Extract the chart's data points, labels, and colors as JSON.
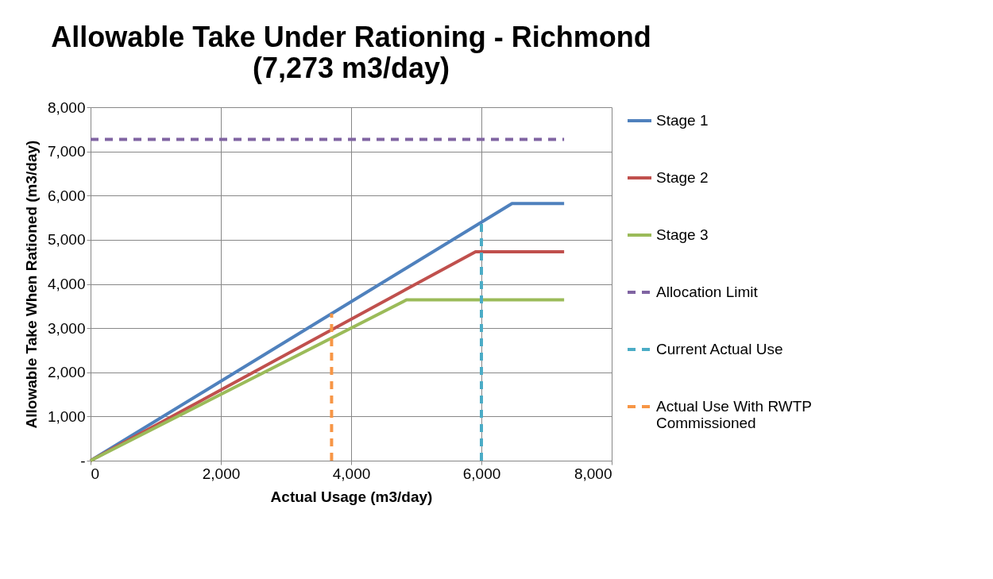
{
  "chart_data": {
    "type": "line",
    "title": "Allowable Take Under Rationing - Richmond",
    "subtitle": "(7,273 m3/day)",
    "xlabel": "Actual Usage (m3/day)",
    "ylabel": "Allowable Take When Rationed (m3/day)",
    "xlim": [
      0,
      8000
    ],
    "xticks": [
      0,
      {
        "value": 2000,
        "label": "2,000"
      },
      {
        "value": 4000,
        "label": "4,000"
      },
      {
        "value": 6000,
        "label": "6,000"
      },
      {
        "value": 8000,
        "label": "8,000"
      }
    ],
    "ylim": [
      0,
      8000
    ],
    "yticks": [
      {
        "value": 0,
        "label": "-"
      },
      {
        "value": 1000,
        "label": "1,000"
      },
      {
        "value": 2000,
        "label": "2,000"
      },
      {
        "value": 3000,
        "label": "3,000"
      },
      {
        "value": 4000,
        "label": "4,000"
      },
      {
        "value": 5000,
        "label": "5,000"
      },
      {
        "value": 6000,
        "label": "6,000"
      },
      {
        "value": 7000,
        "label": "7,000"
      },
      {
        "value": 8000,
        "label": "8,000"
      }
    ],
    "grid": true,
    "legend": "right",
    "marker": "none",
    "series": [
      {
        "name": "Stage 1",
        "color": "#4f81bd",
        "line_style": "solid",
        "x": [
          0,
          6470,
          7270
        ],
        "values": [
          0,
          5820,
          5820
        ]
      },
      {
        "name": "Stage 2",
        "color": "#c0504d",
        "line_style": "solid",
        "x": [
          0,
          5910,
          7270
        ],
        "values": [
          0,
          4730,
          4730
        ]
      },
      {
        "name": "Stage 3",
        "color": "#9bbb59",
        "line_style": "solid",
        "x": [
          0,
          4850,
          7270
        ],
        "values": [
          0,
          3640,
          3640
        ]
      },
      {
        "name": "Allocation Limit",
        "color": "#8064a2",
        "line_style": "dashed",
        "x": [
          0,
          7270
        ],
        "values": [
          7270,
          7270
        ]
      },
      {
        "name": "Current Actual Use",
        "color": "#4bacc6",
        "line_style": "dashed",
        "x": [
          6000,
          6000
        ],
        "values": [
          0,
          5400
        ]
      },
      {
        "name": "Actual Use With RWTP Commissioned",
        "color": "#f79646",
        "line_style": "dashed",
        "x": [
          3700,
          3700
        ],
        "values": [
          0,
          3330
        ]
      }
    ]
  }
}
